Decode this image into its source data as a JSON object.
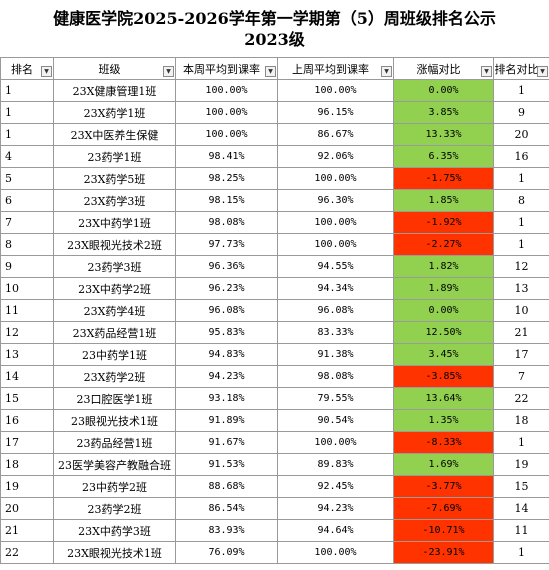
{
  "title_line1": "健康医学院2025-2026学年第一学期第（5）周班级排名公示",
  "title_line2": "2023级",
  "headers": [
    "排名",
    "班级",
    "本周平均到课率",
    "上周平均到课率",
    "涨幅对比",
    "排名对比"
  ],
  "colors": {
    "increase": "#92d050",
    "decrease": "#ff3300"
  },
  "rows": [
    {
      "rank": "1",
      "class": "23X健康管理1班",
      "this_week": "100.00%",
      "last_week": "100.00%",
      "change": "0.00%",
      "trend": "up",
      "prev_rank": "1"
    },
    {
      "rank": "1",
      "class": "23X药学1班",
      "this_week": "100.00%",
      "last_week": "96.15%",
      "change": "3.85%",
      "trend": "up",
      "prev_rank": "9"
    },
    {
      "rank": "1",
      "class": "23X中医养生保健",
      "this_week": "100.00%",
      "last_week": "86.67%",
      "change": "13.33%",
      "trend": "up",
      "prev_rank": "20"
    },
    {
      "rank": "4",
      "class": "23药学1班",
      "this_week": "98.41%",
      "last_week": "92.06%",
      "change": "6.35%",
      "trend": "up",
      "prev_rank": "16"
    },
    {
      "rank": "5",
      "class": "23X药学5班",
      "this_week": "98.25%",
      "last_week": "100.00%",
      "change": "-1.75%",
      "trend": "down",
      "prev_rank": "1"
    },
    {
      "rank": "6",
      "class": "23X药学3班",
      "this_week": "98.15%",
      "last_week": "96.30%",
      "change": "1.85%",
      "trend": "up",
      "prev_rank": "8"
    },
    {
      "rank": "7",
      "class": "23X中药学1班",
      "this_week": "98.08%",
      "last_week": "100.00%",
      "change": "-1.92%",
      "trend": "down",
      "prev_rank": "1"
    },
    {
      "rank": "8",
      "class": "23X眼视光技术2班",
      "this_week": "97.73%",
      "last_week": "100.00%",
      "change": "-2.27%",
      "trend": "down",
      "prev_rank": "1"
    },
    {
      "rank": "9",
      "class": "23药学3班",
      "this_week": "96.36%",
      "last_week": "94.55%",
      "change": "1.82%",
      "trend": "up",
      "prev_rank": "12"
    },
    {
      "rank": "10",
      "class": "23X中药学2班",
      "this_week": "96.23%",
      "last_week": "94.34%",
      "change": "1.89%",
      "trend": "up",
      "prev_rank": "13"
    },
    {
      "rank": "11",
      "class": "23X药学4班",
      "this_week": "96.08%",
      "last_week": "96.08%",
      "change": "0.00%",
      "trend": "up",
      "prev_rank": "10"
    },
    {
      "rank": "12",
      "class": "23X药品经营1班",
      "this_week": "95.83%",
      "last_week": "83.33%",
      "change": "12.50%",
      "trend": "up",
      "prev_rank": "21"
    },
    {
      "rank": "13",
      "class": "23中药学1班",
      "this_week": "94.83%",
      "last_week": "91.38%",
      "change": "3.45%",
      "trend": "up",
      "prev_rank": "17"
    },
    {
      "rank": "14",
      "class": "23X药学2班",
      "this_week": "94.23%",
      "last_week": "98.08%",
      "change": "-3.85%",
      "trend": "down",
      "prev_rank": "7"
    },
    {
      "rank": "15",
      "class": "23口腔医学1班",
      "this_week": "93.18%",
      "last_week": "79.55%",
      "change": "13.64%",
      "trend": "up",
      "prev_rank": "22"
    },
    {
      "rank": "16",
      "class": "23眼视光技术1班",
      "this_week": "91.89%",
      "last_week": "90.54%",
      "change": "1.35%",
      "trend": "up",
      "prev_rank": "18"
    },
    {
      "rank": "17",
      "class": "23药品经营1班",
      "this_week": "91.67%",
      "last_week": "100.00%",
      "change": "-8.33%",
      "trend": "down",
      "prev_rank": "1"
    },
    {
      "rank": "18",
      "class": "23医学美容产教融合班",
      "this_week": "91.53%",
      "last_week": "89.83%",
      "change": "1.69%",
      "trend": "up",
      "prev_rank": "19"
    },
    {
      "rank": "19",
      "class": "23中药学2班",
      "this_week": "88.68%",
      "last_week": "92.45%",
      "change": "-3.77%",
      "trend": "down",
      "prev_rank": "15"
    },
    {
      "rank": "20",
      "class": "23药学2班",
      "this_week": "86.54%",
      "last_week": "94.23%",
      "change": "-7.69%",
      "trend": "down",
      "prev_rank": "14"
    },
    {
      "rank": "21",
      "class": "23X中药学3班",
      "this_week": "83.93%",
      "last_week": "94.64%",
      "change": "-10.71%",
      "trend": "down",
      "prev_rank": "11"
    },
    {
      "rank": "22",
      "class": "23X眼视光技术1班",
      "this_week": "76.09%",
      "last_week": "100.00%",
      "change": "-23.91%",
      "trend": "down",
      "prev_rank": "1"
    }
  ]
}
